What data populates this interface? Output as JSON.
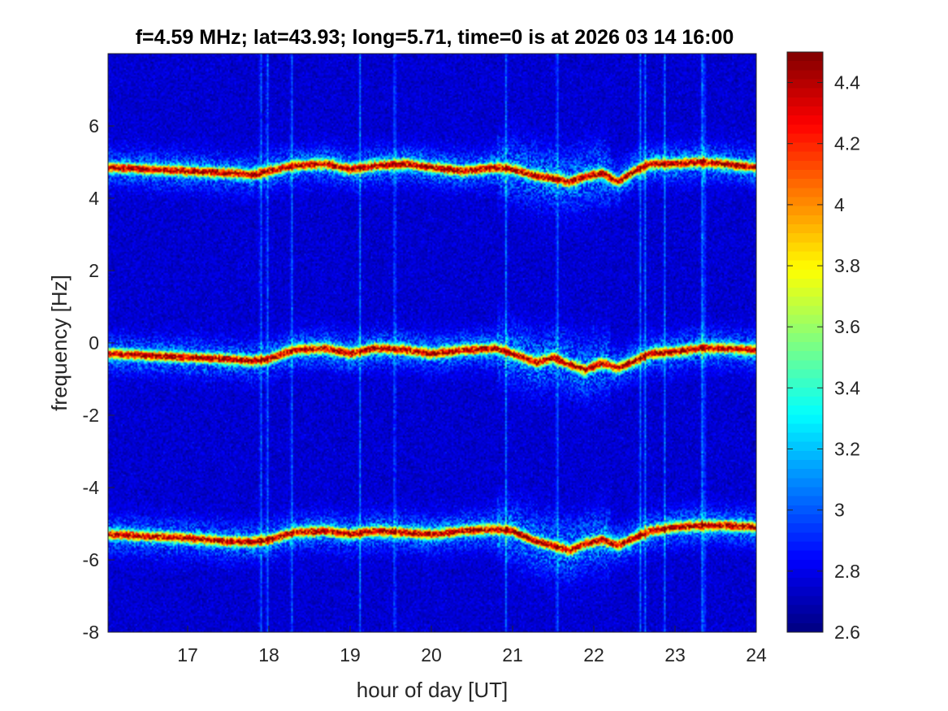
{
  "chart_data": {
    "type": "heatmap",
    "title": "f=4.59 MHz;  lat=43.93; long=5.71, time=0 is at 2026 03 14 16:00",
    "xlabel": "hour of day [UT]",
    "ylabel": "frequency [Hz]",
    "xlim": [
      16.02,
      24.0
    ],
    "ylim": [
      -8,
      8
    ],
    "xticks": [
      17,
      18,
      19,
      20,
      21,
      22,
      23,
      24
    ],
    "xtick_labels": [
      "17",
      "18",
      "19",
      "20",
      "21",
      "22",
      "23",
      "24"
    ],
    "yticks": [
      -8,
      -6,
      -4,
      -2,
      0,
      2,
      4,
      6
    ],
    "ytick_labels": [
      "-8",
      "-6",
      "-4",
      "-2",
      "0",
      "2",
      "4",
      "6"
    ],
    "colormap": "jet",
    "colorbar": {
      "range": [
        2.6,
        4.5
      ],
      "ticks": [
        2.6,
        2.8,
        3,
        3.2,
        3.4,
        3.6,
        3.8,
        4,
        4.2,
        4.4
      ],
      "tick_labels": [
        "2.6",
        "2.8",
        "3",
        "3.2",
        "3.4",
        "3.6",
        "3.8",
        "4",
        "4.2",
        "4.4"
      ]
    },
    "background_level": 2.75,
    "doppler_traces": [
      {
        "offset_hz": 4.9,
        "x": [
          16.05,
          16.5,
          17.0,
          17.5,
          17.8,
          18.0,
          18.3,
          18.7,
          19.0,
          19.3,
          19.7,
          20.0,
          20.4,
          20.8,
          21.0,
          21.3,
          21.5,
          21.7,
          21.9,
          22.1,
          22.3,
          22.5,
          22.7,
          23.0,
          23.3,
          23.6,
          24.0
        ],
        "y": [
          4.85,
          4.8,
          4.75,
          4.7,
          4.65,
          4.75,
          4.9,
          4.95,
          4.8,
          4.9,
          4.95,
          4.85,
          4.75,
          4.85,
          4.8,
          4.6,
          4.55,
          4.45,
          4.6,
          4.7,
          4.45,
          4.75,
          4.95,
          4.95,
          5.0,
          4.95,
          4.85
        ]
      },
      {
        "offset_hz": -0.3,
        "x": [
          16.05,
          16.5,
          17.0,
          17.5,
          17.8,
          18.0,
          18.3,
          18.7,
          19.0,
          19.3,
          19.7,
          20.0,
          20.4,
          20.8,
          21.0,
          21.3,
          21.5,
          21.7,
          21.9,
          22.1,
          22.3,
          22.5,
          22.7,
          23.0,
          23.3,
          23.6,
          24.0
        ],
        "y": [
          -0.3,
          -0.35,
          -0.4,
          -0.45,
          -0.5,
          -0.45,
          -0.2,
          -0.15,
          -0.3,
          -0.15,
          -0.2,
          -0.3,
          -0.2,
          -0.15,
          -0.3,
          -0.55,
          -0.4,
          -0.6,
          -0.75,
          -0.55,
          -0.7,
          -0.5,
          -0.3,
          -0.25,
          -0.15,
          -0.15,
          -0.2
        ]
      },
      {
        "offset_hz": -5.3,
        "x": [
          16.05,
          16.5,
          17.0,
          17.5,
          17.8,
          18.0,
          18.3,
          18.7,
          19.0,
          19.3,
          19.7,
          20.0,
          20.4,
          20.8,
          21.0,
          21.3,
          21.5,
          21.7,
          21.9,
          22.1,
          22.3,
          22.5,
          22.7,
          23.0,
          23.3,
          23.6,
          24.0
        ],
        "y": [
          -5.3,
          -5.35,
          -5.4,
          -5.5,
          -5.5,
          -5.45,
          -5.25,
          -5.2,
          -5.3,
          -5.2,
          -5.25,
          -5.3,
          -5.2,
          -5.15,
          -5.2,
          -5.5,
          -5.6,
          -5.75,
          -5.55,
          -5.45,
          -5.6,
          -5.4,
          -5.2,
          -5.1,
          -5.05,
          -5.05,
          -5.1
        ]
      }
    ],
    "vertical_stripes_hour": [
      17.9,
      17.98,
      18.28,
      19.12,
      19.55,
      20.92,
      21.55,
      22.57,
      22.63,
      22.87,
      23.33,
      23.36
    ]
  }
}
